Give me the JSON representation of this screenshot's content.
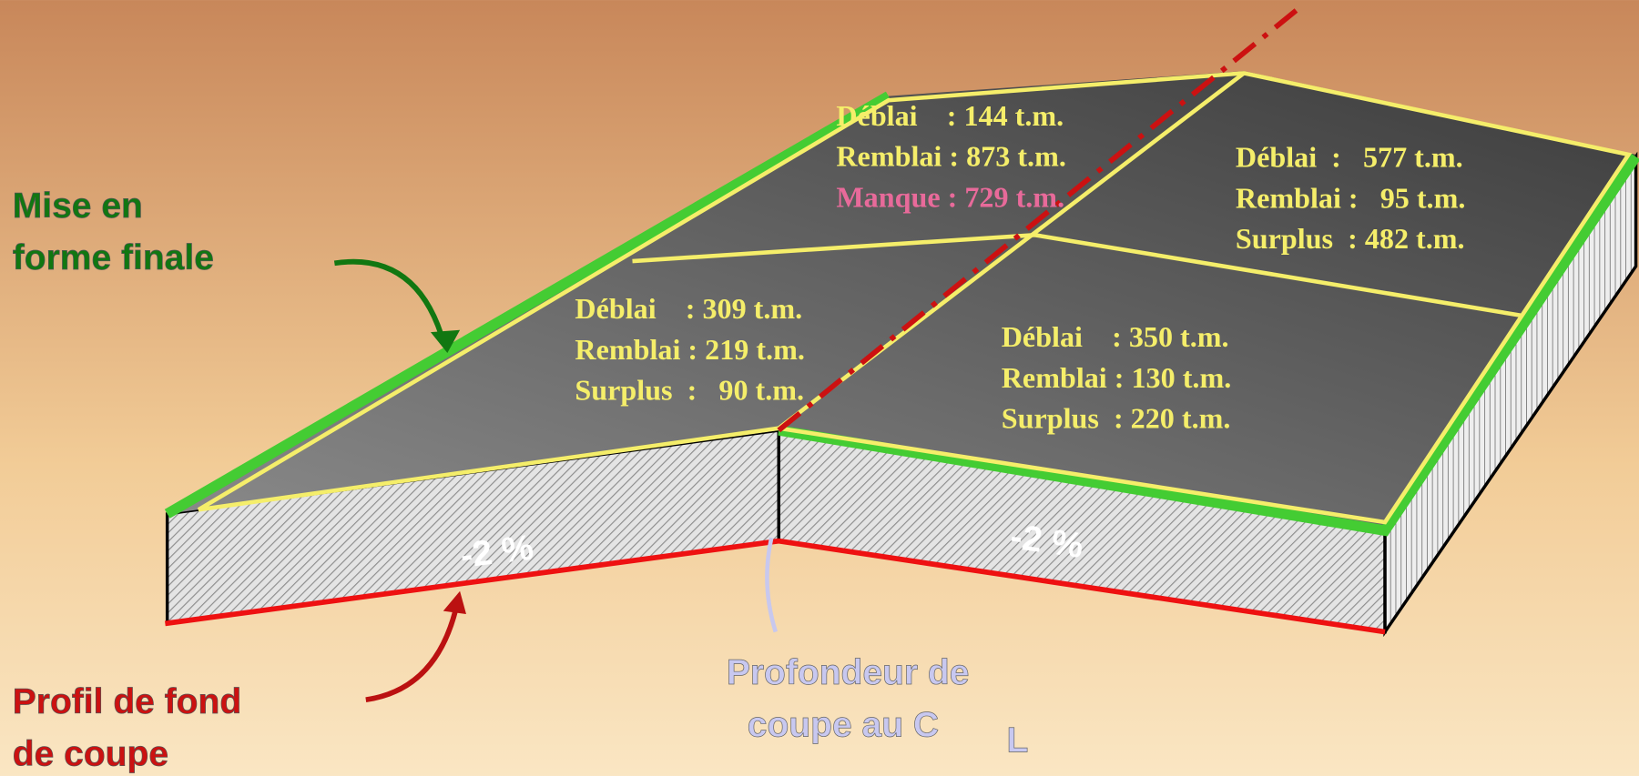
{
  "labels": {
    "finish": [
      "Mise en",
      "forme finale"
    ],
    "bottom": [
      "Profil de fond",
      "de coupe"
    ],
    "depth": [
      "Profondeur de",
      "coupe au C"
    ],
    "depth_sub": "L"
  },
  "slopes": [
    "-2 %",
    "-2 %"
  ],
  "zones": [
    {
      "lines": [
        "Déblai    : 144 t.m.",
        "Remblai : 873 t.m.",
        "Manque : 729 t.m."
      ]
    },
    {
      "lines": [
        "Déblai  :   577 t.m.",
        "Remblai :   95 t.m.",
        "Surplus  : 482 t.m."
      ]
    },
    {
      "lines": [
        "Déblai    : 309 t.m.",
        "Remblai : 219 t.m.",
        "Surplus  :   90 t.m."
      ]
    },
    {
      "lines": [
        "Déblai    : 350 t.m.",
        "Remblai : 130 t.m.",
        "Surplus  : 220 t.m."
      ]
    }
  ]
}
